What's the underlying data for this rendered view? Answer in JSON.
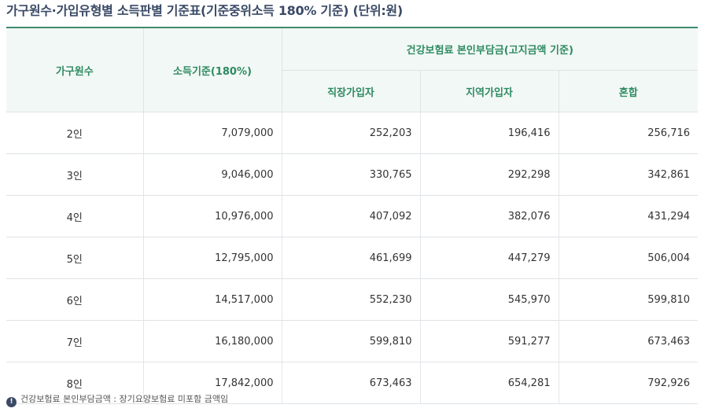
{
  "title": "가구원수·가입유형별 소득판별 기준표(기준중위소득 180% 기준) (단위:원)",
  "table": {
    "headers": {
      "household": "가구원수",
      "income": "소득기준(180%)",
      "insurance_group": "건강보험료 본인부담금(고지금액 기준)",
      "employee": "직장가입자",
      "regional": "지역가입자",
      "mixed": "혼합"
    },
    "rows": [
      {
        "household": "2인",
        "income": "7,079,000",
        "employee": "252,203",
        "regional": "196,416",
        "mixed": "256,716"
      },
      {
        "household": "3인",
        "income": "9,046,000",
        "employee": "330,765",
        "regional": "292,298",
        "mixed": "342,861"
      },
      {
        "household": "4인",
        "income": "10,976,000",
        "employee": "407,092",
        "regional": "382,076",
        "mixed": "431,294"
      },
      {
        "household": "5인",
        "income": "12,795,000",
        "employee": "461,699",
        "regional": "447,279",
        "mixed": "506,004"
      },
      {
        "household": "6인",
        "income": "14,517,000",
        "employee": "552,230",
        "regional": "545,970",
        "mixed": "599,810"
      },
      {
        "household": "7인",
        "income": "16,180,000",
        "employee": "599,810",
        "regional": "591,277",
        "mixed": "673,463"
      },
      {
        "household": "8인",
        "income": "17,842,000",
        "employee": "673,463",
        "regional": "654,281",
        "mixed": "792,926"
      }
    ]
  },
  "note": {
    "icon": "exclamation-icon",
    "text": "건강보험료 본인부담금액 : 장기요양보험료 미포함 금액임"
  }
}
